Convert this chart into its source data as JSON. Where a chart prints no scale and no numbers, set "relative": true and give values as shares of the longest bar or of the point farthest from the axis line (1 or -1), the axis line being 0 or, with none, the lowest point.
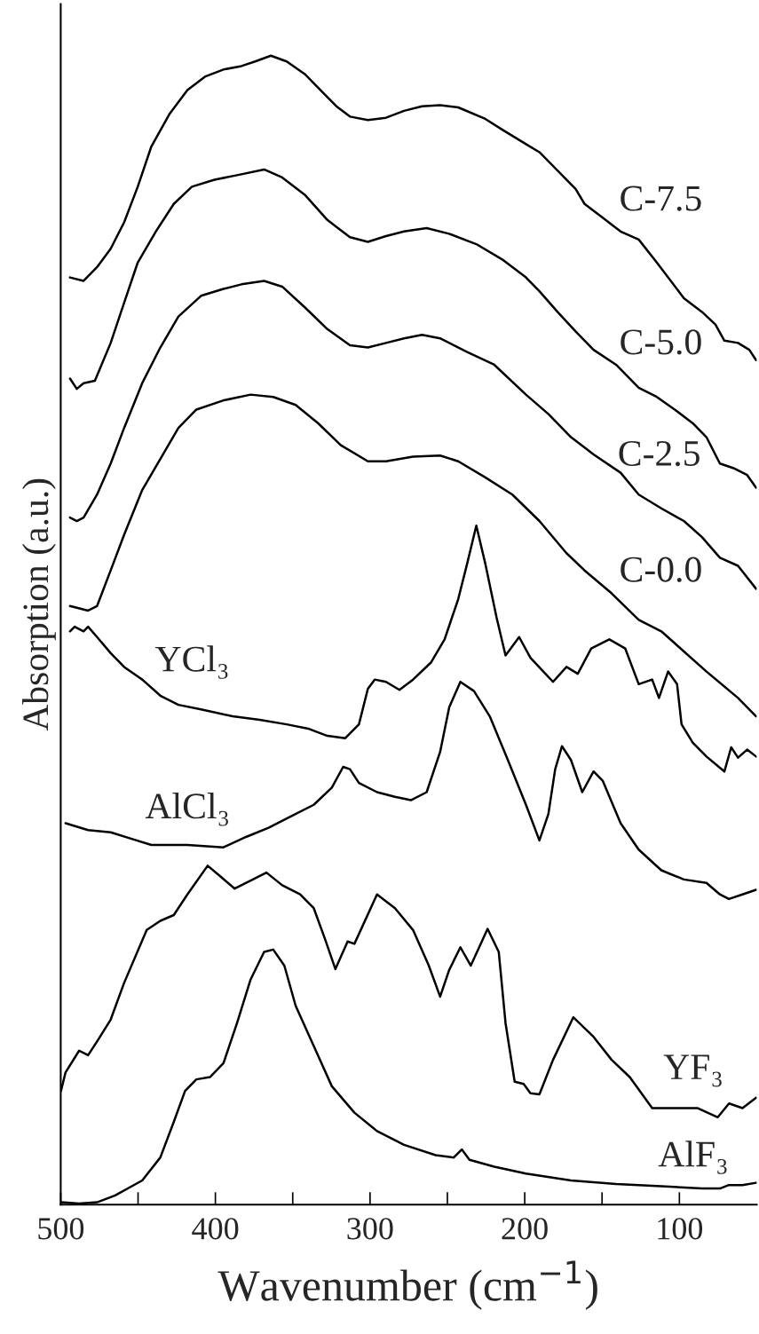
{
  "chart_data": {
    "type": "line",
    "relative": true,
    "xlabel": "Wavenumber (cm$^{−1}$)",
    "ylabel": "Absorption (a.u.)",
    "xlim": [
      500,
      50
    ],
    "xticks": [
      500,
      {
        "value": 450,
        "label": null
      },
      400,
      {
        "value": 350,
        "label": null
      },
      300,
      {
        "value": 250,
        "label": null
      },
      200,
      {
        "value": 150,
        "label": null
      },
      100
    ],
    "grid": false,
    "legend": false,
    "marker": "none",
    "line_style": "solid",
    "series": [
      {
        "name": "C-7.5",
        "color": "#000000",
        "x": [
          494.0,
          485.2,
          476.5,
          467.7,
          459.0,
          450.2,
          441.4,
          429.8,
          418.1,
          406.4,
          394.8,
          383.1,
          374.3,
          364.1,
          353.9,
          342.2,
          330.6,
          321.8,
          313.0,
          301.4,
          289.7,
          278.0,
          266.4,
          254.7,
          243.0,
          225.5,
          213.8,
          199.2,
          190.5,
          178.8,
          167.1,
          161.3,
          149.6,
          138.0,
          126.3,
          114.6,
          97.1,
          85.4,
          76.7,
          70.9,
          62.1,
          54.8,
          50.4
        ],
        "values": [
          0.807,
          0.804,
          0.816,
          0.832,
          0.855,
          0.886,
          0.921,
          0.949,
          0.97,
          0.982,
          0.988,
          0.991,
          0.995,
          1.0,
          0.995,
          0.984,
          0.968,
          0.956,
          0.947,
          0.944,
          0.946,
          0.952,
          0.956,
          0.957,
          0.955,
          0.945,
          0.935,
          0.923,
          0.916,
          0.9,
          0.884,
          0.871,
          0.859,
          0.847,
          0.84,
          0.82,
          0.789,
          0.777,
          0.766,
          0.752,
          0.75,
          0.744,
          0.735
        ]
      },
      {
        "name": "C-5.0",
        "color": "#000000",
        "x": [
          494.0,
          489.6,
          485.2,
          477.9,
          467.7,
          459.0,
          450.2,
          438.5,
          426.9,
          415.2,
          400.6,
          386.0,
          368.5,
          356.8,
          342.2,
          327.6,
          313.0,
          301.4,
          289.7,
          278.0,
          263.4,
          248.9,
          231.3,
          213.8,
          199.2,
          190.5,
          178.8,
          167.1,
          155.5,
          140.9,
          126.3,
          114.6,
          103.0,
          91.3,
          82.5,
          73.8,
          65.0,
          56.2,
          50.4
        ],
        "values": [
          0.719,
          0.71,
          0.715,
          0.717,
          0.75,
          0.785,
          0.82,
          0.847,
          0.871,
          0.886,
          0.892,
          0.896,
          0.901,
          0.894,
          0.879,
          0.857,
          0.842,
          0.838,
          0.843,
          0.847,
          0.85,
          0.845,
          0.836,
          0.822,
          0.807,
          0.795,
          0.777,
          0.76,
          0.744,
          0.731,
          0.711,
          0.703,
          0.692,
          0.68,
          0.668,
          0.645,
          0.641,
          0.635,
          0.624
        ]
      },
      {
        "name": "C-2.5",
        "color": "#000000",
        "x": [
          494.0,
          489.6,
          485.2,
          476.5,
          467.7,
          459.0,
          447.3,
          435.6,
          423.9,
          409.3,
          394.8,
          383.1,
          368.5,
          356.8,
          342.2,
          327.6,
          313.0,
          301.4,
          289.7,
          278.0,
          266.4,
          254.7,
          237.2,
          219.7,
          199.2,
          184.6,
          170.1,
          155.5,
          138.0,
          126.3,
          111.7,
          97.1,
          85.4,
          73.8,
          62.1,
          50.4
        ],
        "values": [
          0.598,
          0.595,
          0.598,
          0.618,
          0.645,
          0.676,
          0.715,
          0.746,
          0.773,
          0.791,
          0.797,
          0.801,
          0.804,
          0.799,
          0.781,
          0.762,
          0.748,
          0.746,
          0.75,
          0.754,
          0.757,
          0.754,
          0.742,
          0.731,
          0.705,
          0.688,
          0.668,
          0.653,
          0.637,
          0.618,
          0.606,
          0.595,
          0.581,
          0.563,
          0.556,
          0.536
        ]
      },
      {
        "name": "C-0.0",
        "color": "#000000",
        "x": [
          494.0,
          482.3,
          476.5,
          467.7,
          459.0,
          447.3,
          435.6,
          423.9,
          412.3,
          394.8,
          377.2,
          362.6,
          348.1,
          333.5,
          318.9,
          301.4,
          289.7,
          272.2,
          254.7,
          243.0,
          225.5,
          208.0,
          190.5,
          173.0,
          161.3,
          143.8,
          126.3,
          111.7,
          82.5,
          62.1,
          50.4
        ],
        "values": [
          0.521,
          0.517,
          0.521,
          0.552,
          0.583,
          0.622,
          0.649,
          0.676,
          0.692,
          0.7,
          0.705,
          0.703,
          0.696,
          0.68,
          0.661,
          0.647,
          0.647,
          0.651,
          0.652,
          0.647,
          0.633,
          0.618,
          0.595,
          0.567,
          0.552,
          0.532,
          0.509,
          0.499,
          0.464,
          0.441,
          0.425
        ]
      },
      {
        "name": "YCl₃",
        "color": "#000000",
        "x": [
          494.0,
          491.0,
          485.2,
          482.3,
          476.5,
          467.7,
          459.0,
          447.3,
          435.6,
          423.9,
          409.3,
          388.9,
          371.4,
          353.9,
          339.3,
          327.6,
          316.0,
          307.2,
          301.4,
          297.0,
          289.7,
          281.0,
          272.2,
          260.5,
          251.8,
          243.0,
          237.2,
          231.3,
          225.5,
          218.2,
          212.4,
          203.6,
          196.3,
          181.7,
          173.0,
          165.7,
          157.0,
          145.3,
          135.0,
          126.3,
          117.6,
          113.2,
          107.3,
          101.5,
          98.6,
          91.3,
          82.5,
          70.9,
          66.5,
          62.1,
          56.2,
          50.4
        ],
        "values": [
          0.499,
          0.503,
          0.499,
          0.503,
          0.494,
          0.48,
          0.468,
          0.457,
          0.443,
          0.435,
          0.431,
          0.425,
          0.422,
          0.418,
          0.414,
          0.408,
          0.406,
          0.418,
          0.449,
          0.457,
          0.455,
          0.448,
          0.457,
          0.472,
          0.492,
          0.527,
          0.558,
          0.591,
          0.558,
          0.511,
          0.478,
          0.494,
          0.476,
          0.455,
          0.468,
          0.462,
          0.484,
          0.492,
          0.484,
          0.453,
          0.457,
          0.441,
          0.464,
          0.453,
          0.418,
          0.402,
          0.39,
          0.377,
          0.398,
          0.389,
          0.396,
          0.39
        ]
      },
      {
        "name": "AlCl₃",
        "color": "#000000",
        "x": [
          496.9,
          482.3,
          467.7,
          453.2,
          441.4,
          418.1,
          394.8,
          380.2,
          365.6,
          351.0,
          336.4,
          324.7,
          317.4,
          313.0,
          307.2,
          295.5,
          283.9,
          273.6,
          263.4,
          254.7,
          248.8,
          241.6,
          232.8,
          222.6,
          210.9,
          199.2,
          190.5,
          184.7,
          180.3,
          175.9,
          170.1,
          162.8,
          155.5,
          149.6,
          138.0,
          126.3,
          111.7,
          97.1,
          82.5,
          73.8,
          68.0,
          59.2,
          50.4
        ],
        "values": [
          0.332,
          0.326,
          0.324,
          0.318,
          0.313,
          0.313,
          0.311,
          0.32,
          0.328,
          0.338,
          0.348,
          0.363,
          0.381,
          0.379,
          0.367,
          0.359,
          0.355,
          0.352,
          0.359,
          0.394,
          0.433,
          0.455,
          0.447,
          0.425,
          0.387,
          0.348,
          0.317,
          0.34,
          0.379,
          0.399,
          0.387,
          0.359,
          0.377,
          0.369,
          0.332,
          0.309,
          0.291,
          0.283,
          0.28,
          0.27,
          0.266,
          0.27,
          0.274
        ]
      },
      {
        "name": "YF₃",
        "color": "#000000",
        "x": [
          499.8,
          496.9,
          488.1,
          482.3,
          476.5,
          467.7,
          459.0,
          444.4,
          435.6,
          426.9,
          418.1,
          405.0,
          396.2,
          387.5,
          377.2,
          367.0,
          356.8,
          345.2,
          336.4,
          329.1,
          322.4,
          314.5,
          310.1,
          295.5,
          283.9,
          272.2,
          262.0,
          254.7,
          248.9,
          241.6,
          234.9,
          224.0,
          216.8,
          212.4,
          206.5,
          200.7,
          196.3,
          190.5,
          181.7,
          168.6,
          155.5,
          143.8,
          132.1,
          117.6,
          102.9,
          88.4,
          75.2,
          67.9,
          59.2,
          50.4
        ],
        "values": [
          0.099,
          0.115,
          0.134,
          0.13,
          0.142,
          0.161,
          0.193,
          0.239,
          0.247,
          0.252,
          0.27,
          0.295,
          0.285,
          0.275,
          0.282,
          0.289,
          0.278,
          0.27,
          0.258,
          0.231,
          0.205,
          0.229,
          0.227,
          0.27,
          0.258,
          0.239,
          0.208,
          0.181,
          0.204,
          0.224,
          0.208,
          0.24,
          0.22,
          0.158,
          0.107,
          0.105,
          0.097,
          0.096,
          0.126,
          0.163,
          0.146,
          0.126,
          0.111,
          0.084,
          0.084,
          0.084,
          0.076,
          0.088,
          0.084,
          0.093
        ]
      },
      {
        "name": "AlF₃",
        "color": "#000000",
        "x": [
          499.8,
          488.1,
          476.5,
          464.8,
          447.3,
          435.6,
          426.9,
          419.6,
          412.3,
          403.5,
          394.8,
          386.0,
          377.2,
          368.5,
          362.6,
          355.4,
          348.1,
          336.4,
          324.7,
          310.1,
          295.5,
          278.0,
          257.6,
          245.9,
          240.7,
          235.7,
          219.7,
          199.2,
          170.1,
          140.9,
          111.7,
          85.4,
          73.8,
          68.0,
          59.2,
          50.4
        ],
        "values": [
          0.002,
          0.001,
          0.002,
          0.008,
          0.021,
          0.041,
          0.072,
          0.099,
          0.109,
          0.111,
          0.123,
          0.158,
          0.196,
          0.22,
          0.222,
          0.208,
          0.173,
          0.138,
          0.103,
          0.08,
          0.064,
          0.052,
          0.043,
          0.041,
          0.048,
          0.039,
          0.033,
          0.027,
          0.021,
          0.018,
          0.016,
          0.014,
          0.014,
          0.017,
          0.017,
          0.019
        ]
      }
    ]
  }
}
